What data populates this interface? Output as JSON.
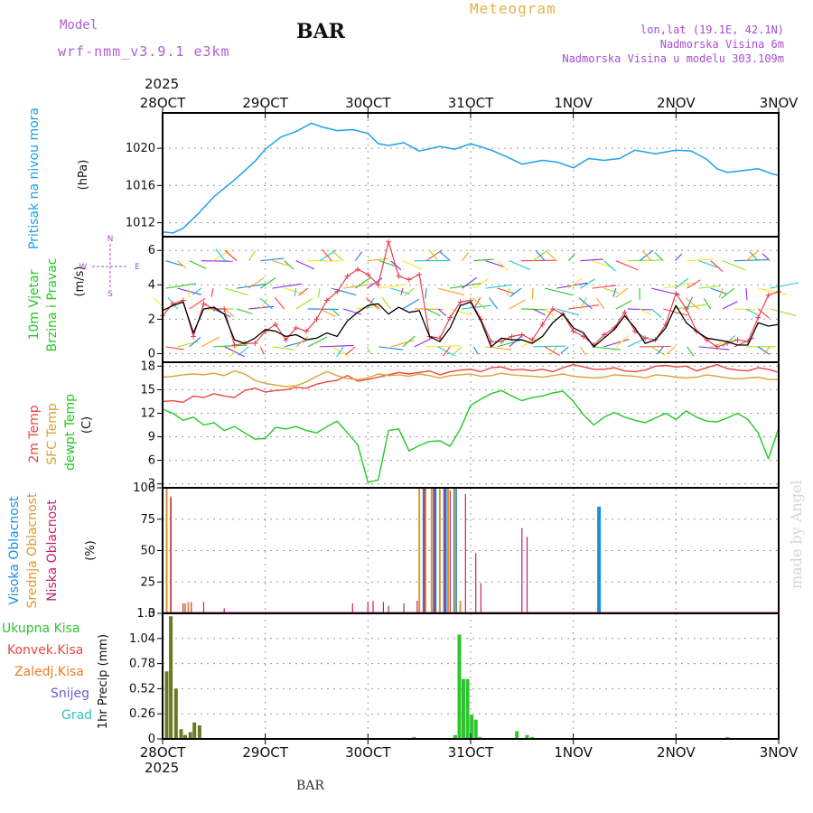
{
  "header": {
    "model_label": "Model",
    "model_name": "wrf-nmm_v3.9.1  e3km",
    "station": "BAR",
    "meteogram": "Meteogram",
    "lonlat": "lon,lat (19.1E, 42.1N)",
    "elevation": "Nadmorska Visina 6m",
    "model_elevation": "Nadmorska Visina u modelu 303.109m",
    "year": "2025",
    "footer_station": "BAR",
    "credit": "made by Angel"
  },
  "colors": {
    "pressure": "#1aa3e8",
    "t2m": "#e8473f",
    "sfc": "#e0a030",
    "dew": "#22c922",
    "wind_black": "#000000",
    "wind_red": "#e84050",
    "cloud_high": "#1a8fe0",
    "cloud_mid": "#d89a2a",
    "cloud_low": "#c0206e",
    "precip": "#2ec42e",
    "precip_dark": "#6a7a22",
    "grid": "#9a9a9a",
    "purple": "#a64ccf"
  },
  "chart_data": [
    {
      "id": "pressure",
      "type": "line",
      "ylabel_main": "Pritisak na nivou mora",
      "ylabel_unit": "(hPa)",
      "ylim": [
        1010.5,
        1023.8
      ],
      "yticks": [
        1012,
        1016,
        1020
      ],
      "x_dates": [
        "28OCT",
        "29OCT",
        "30OCT",
        "31OCT",
        "1NOV",
        "2NOV",
        "3NOV"
      ],
      "x": [
        0,
        0.1,
        0.2,
        0.35,
        0.5,
        0.7,
        0.9,
        1.0,
        1.15,
        1.3,
        1.45,
        1.55,
        1.7,
        1.85,
        2.0,
        2.1,
        2.2,
        2.35,
        2.5,
        2.7,
        2.85,
        3.0,
        3.2,
        3.35,
        3.5,
        3.7,
        3.85,
        4.0,
        4.15,
        4.3,
        4.45,
        4.6,
        4.8,
        5.0,
        5.15,
        5.3,
        5.4,
        5.5,
        5.65,
        5.8,
        5.95,
        6.0
      ],
      "values": [
        1011.0,
        1010.9,
        1011.4,
        1013.0,
        1014.8,
        1016.6,
        1018.6,
        1019.9,
        1021.2,
        1021.8,
        1022.7,
        1022.3,
        1021.9,
        1022.0,
        1021.6,
        1020.5,
        1020.3,
        1020.6,
        1019.7,
        1020.2,
        1019.9,
        1020.5,
        1019.8,
        1019.1,
        1018.3,
        1018.7,
        1018.5,
        1017.9,
        1018.9,
        1018.7,
        1018.9,
        1019.8,
        1019.4,
        1019.8,
        1019.7,
        1018.8,
        1017.8,
        1017.4,
        1017.6,
        1017.8,
        1017.2,
        1017.1
      ]
    },
    {
      "id": "wind",
      "type": "line",
      "ylabel_main": "10m Vjetar",
      "ylabel_main2": "Brzina i Pravac",
      "ylabel_unit": "(m/s)",
      "compass": [
        "N",
        "W",
        "E",
        "S"
      ],
      "ylim": [
        -0.5,
        6.8
      ],
      "yticks": [
        0,
        2,
        4,
        6
      ],
      "x": [
        0,
        0.1,
        0.2,
        0.3,
        0.4,
        0.5,
        0.6,
        0.7,
        0.8,
        0.9,
        1.0,
        1.1,
        1.2,
        1.3,
        1.4,
        1.5,
        1.6,
        1.7,
        1.8,
        1.9,
        2.0,
        2.1,
        2.2,
        2.3,
        2.4,
        2.5,
        2.6,
        2.7,
        2.8,
        2.9,
        3.0,
        3.1,
        3.2,
        3.3,
        3.4,
        3.5,
        3.6,
        3.7,
        3.8,
        3.9,
        4.0,
        4.1,
        4.2,
        4.3,
        4.4,
        4.5,
        4.6,
        4.7,
        4.8,
        4.9,
        5.0,
        5.1,
        5.2,
        5.3,
        5.4,
        5.5,
        5.6,
        5.7,
        5.8,
        5.9,
        6.0
      ],
      "series": [
        {
          "name": "speed",
          "values": [
            2.5,
            2.8,
            3.0,
            1.2,
            2.6,
            2.7,
            2.3,
            0.8,
            0.6,
            0.9,
            1.4,
            1.3,
            1.0,
            1.1,
            0.8,
            0.9,
            1.2,
            1.0,
            1.9,
            2.4,
            2.8,
            2.9,
            2.3,
            2.7,
            2.4,
            2.5,
            1.0,
            0.7,
            1.5,
            2.8,
            3.0,
            1.9,
            0.4,
            0.9,
            0.8,
            0.8,
            0.6,
            1.0,
            1.8,
            2.3,
            1.5,
            1.2,
            0.4,
            0.9,
            1.4,
            2.2,
            1.5,
            0.6,
            0.8,
            1.5,
            2.8,
            1.8,
            1.3,
            0.9,
            0.8,
            0.7,
            0.5,
            0.5,
            1.8,
            1.6,
            1.7
          ]
        },
        {
          "name": "gust",
          "values": [
            2.2,
            2.9,
            3.1,
            1.0,
            2.9,
            2.6,
            2.6,
            0.5,
            0.6,
            0.6,
            1.3,
            1.7,
            0.8,
            1.5,
            1.3,
            2.0,
            3.1,
            3.6,
            4.5,
            4.9,
            4.6,
            4.0,
            6.5,
            4.5,
            4.3,
            4.6,
            1.0,
            0.9,
            2.1,
            3.0,
            3.1,
            2.0,
            0.7,
            0.7,
            1.0,
            1.1,
            0.8,
            1.7,
            2.6,
            2.3,
            1.3,
            1.0,
            0.5,
            1.1,
            1.5,
            2.4,
            1.3,
            0.9,
            0.8,
            1.7,
            3.5,
            2.6,
            1.3,
            0.8,
            0.4,
            0.6,
            0.8,
            0.7,
            2.1,
            3.4,
            3.6
          ]
        }
      ]
    },
    {
      "id": "temperature",
      "type": "line",
      "ylabel_main": "2m Temp",
      "ylabel_main2": "SFC Temp",
      "ylabel_main3": "dewpt Temp",
      "ylabel_unit": "(C)",
      "ylim": [
        2.5,
        18.5
      ],
      "yticks": [
        3,
        6,
        9,
        12,
        15,
        18
      ],
      "x": [
        0,
        0.1,
        0.2,
        0.3,
        0.4,
        0.5,
        0.6,
        0.7,
        0.8,
        0.9,
        1.0,
        1.1,
        1.2,
        1.3,
        1.4,
        1.5,
        1.6,
        1.7,
        1.8,
        1.9,
        2.0,
        2.1,
        2.2,
        2.3,
        2.4,
        2.5,
        2.6,
        2.7,
        2.8,
        2.9,
        3.0,
        3.1,
        3.2,
        3.3,
        3.4,
        3.5,
        3.6,
        3.7,
        3.8,
        3.9,
        4.0,
        4.1,
        4.2,
        4.3,
        4.4,
        4.5,
        4.6,
        4.7,
        4.8,
        4.9,
        5.0,
        5.1,
        5.2,
        5.3,
        5.4,
        5.5,
        5.6,
        5.7,
        5.8,
        5.9,
        6.0
      ],
      "series": [
        {
          "name": "t2m",
          "values": [
            13.5,
            13.6,
            13.4,
            14.2,
            14.0,
            14.5,
            14.2,
            14.0,
            14.9,
            15.2,
            14.7,
            14.9,
            15.0,
            15.3,
            15.2,
            15.7,
            16.0,
            16.2,
            16.8,
            16.1,
            16.3,
            16.6,
            16.9,
            17.2,
            17.0,
            17.2,
            17.4,
            16.9,
            17.3,
            17.5,
            17.6,
            17.3,
            17.8,
            17.9,
            17.5,
            17.6,
            17.4,
            17.6,
            17.3,
            17.8,
            18.2,
            17.9,
            17.6,
            17.6,
            17.8,
            17.4,
            17.3,
            17.5,
            18.0,
            18.1,
            17.9,
            18.0,
            17.4,
            17.8,
            18.2,
            17.7,
            17.5,
            17.4,
            17.8,
            17.6,
            17.2
          ]
        },
        {
          "name": "sfc",
          "values": [
            16.6,
            16.7,
            16.9,
            17.0,
            16.9,
            17.1,
            16.8,
            17.4,
            17.0,
            16.2,
            15.8,
            15.6,
            15.4,
            15.5,
            16.0,
            16.7,
            17.3,
            16.8,
            16.4,
            16.3,
            16.5,
            17.0,
            16.8,
            16.9,
            16.7,
            17.0,
            16.8,
            16.5,
            16.8,
            16.9,
            17.0,
            16.7,
            16.8,
            17.1,
            16.9,
            16.8,
            16.7,
            16.6,
            16.8,
            17.0,
            16.7,
            16.6,
            16.5,
            16.6,
            16.9,
            16.8,
            16.7,
            16.5,
            16.9,
            16.8,
            16.6,
            16.5,
            16.6,
            16.9,
            16.7,
            16.5,
            16.4,
            16.5,
            16.6,
            16.3,
            16.3
          ]
        },
        {
          "name": "dew",
          "values": [
            12.5,
            12.0,
            11.1,
            11.5,
            10.5,
            10.8,
            9.8,
            10.3,
            9.5,
            8.7,
            8.8,
            10.2,
            10.0,
            10.3,
            9.8,
            9.5,
            10.3,
            11.0,
            9.5,
            8.0,
            3.2,
            3.5,
            9.8,
            10.0,
            7.2,
            7.9,
            8.4,
            8.5,
            7.8,
            10.0,
            13.0,
            13.8,
            14.5,
            14.9,
            14.2,
            13.6,
            14.0,
            14.2,
            14.6,
            14.8,
            13.5,
            11.8,
            10.5,
            11.5,
            12.1,
            11.5,
            11.1,
            10.8,
            11.4,
            12.0,
            11.2,
            12.3,
            11.5,
            11.0,
            10.9,
            11.4,
            12.0,
            11.2,
            9.5,
            6.2,
            10.1
          ]
        }
      ]
    },
    {
      "id": "clouds",
      "type": "bar",
      "ylabel_main": "Visoka Oblacnost",
      "ylabel_main2": "Srednja Oblacnost",
      "ylabel_main3": "Niska Oblacnost",
      "ylabel_unit": "(%)",
      "ylim": [
        0,
        100
      ],
      "yticks": [
        0,
        25,
        50,
        75,
        100
      ],
      "series": [
        {
          "name": "high",
          "x": [
            2.55,
            2.65,
            2.75,
            2.85,
            4.25
          ],
          "values": [
            100,
            100,
            100,
            100,
            85
          ]
        },
        {
          "name": "mid",
          "x": [
            0.04,
            0.08,
            0.22,
            0.25,
            2.5,
            2.56,
            2.62,
            2.7,
            2.78,
            2.85,
            2.9
          ],
          "values": [
            100,
            93,
            8,
            9,
            100,
            100,
            100,
            99,
            100,
            100,
            10
          ]
        },
        {
          "name": "low",
          "x": [
            0.08,
            0.2,
            0.28,
            0.4,
            0.6,
            1.85,
            2.0,
            2.05,
            2.15,
            2.2,
            2.35,
            2.48,
            2.55,
            2.65,
            2.75,
            2.8,
            2.95,
            3.05,
            3.1,
            3.5,
            3.55
          ],
          "values": [
            92,
            8,
            9,
            9,
            4,
            8,
            9,
            10,
            9,
            6,
            8,
            10,
            100,
            99,
            100,
            98,
            95,
            48,
            24,
            68,
            61
          ]
        }
      ]
    },
    {
      "id": "precip",
      "type": "bar",
      "ylabel_main": "1hr Precip",
      "ylabel_unit": "(mm)",
      "legend": [
        "Ukupna Kisa",
        "Konvek.Kisa",
        "Zaledj.Kisa",
        "Snijeg",
        "Grad"
      ],
      "ylim": [
        0,
        1.3
      ],
      "yticks": [
        0,
        0.26,
        0.52,
        0.78,
        1.04,
        1.3
      ],
      "x_dates": [
        "28OCT",
        "29OCT",
        "30OCT",
        "31OCT",
        "1NOV",
        "2NOV",
        "3NOV"
      ],
      "x": [
        0.04,
        0.08,
        0.13,
        0.18,
        0.22,
        0.27,
        0.31,
        0.36,
        2.45,
        2.85,
        2.89,
        2.93,
        2.97,
        3.01,
        3.05,
        3.09,
        3.45,
        3.55,
        3.6,
        5.5
      ],
      "values": [
        0.7,
        1.27,
        0.52,
        0.1,
        0.04,
        0.07,
        0.17,
        0.14,
        0.02,
        0.04,
        1.08,
        0.62,
        0.62,
        0.25,
        0.2,
        0.02,
        0.08,
        0.04,
        0.02,
        0.02
      ]
    }
  ]
}
